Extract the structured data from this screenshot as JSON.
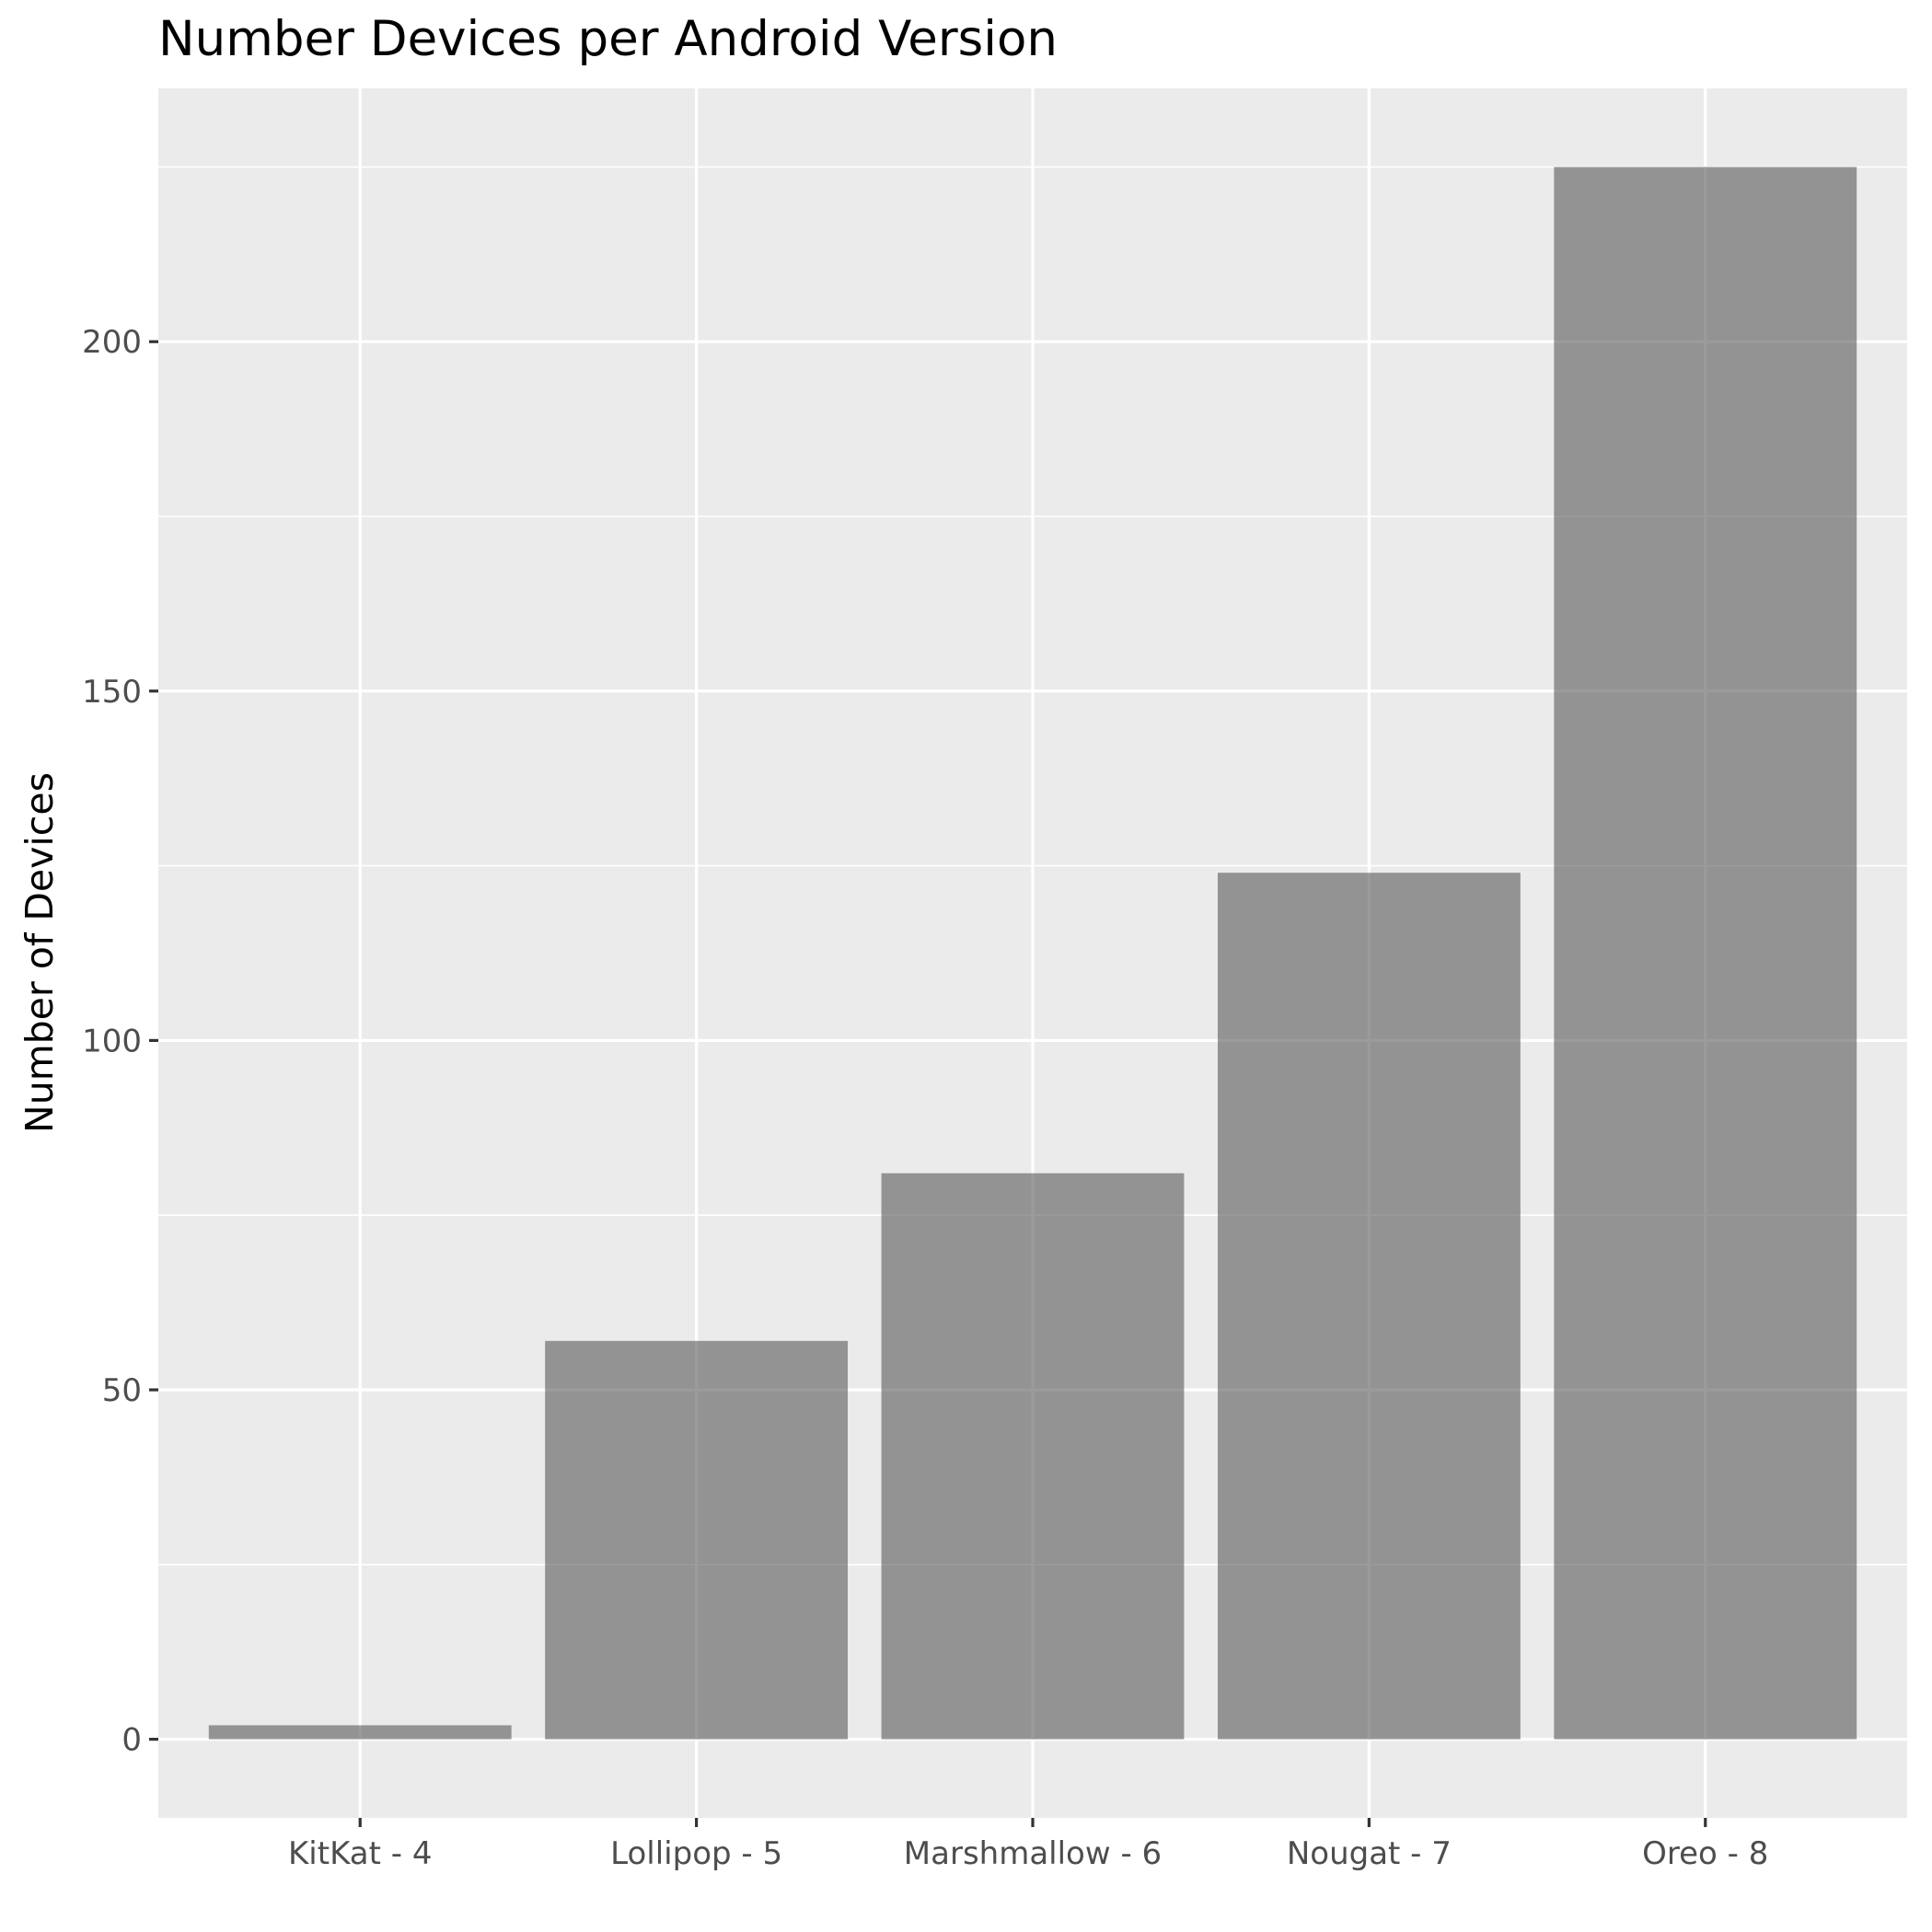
{
  "chart_data": {
    "type": "bar",
    "title": "Number Devices per Android Version",
    "xlabel": "",
    "ylabel": "Number of Devices",
    "categories": [
      "KitKat - 4",
      "Lollipop - 5",
      "Marshmallow - 6",
      "Nougat - 7",
      "Oreo - 8"
    ],
    "values": [
      2,
      57,
      81,
      124,
      225
    ],
    "ylim": [
      -11.25,
      236.25
    ],
    "yticks": [
      0,
      50,
      100,
      150,
      200
    ],
    "ytick_labels": [
      "0",
      "50",
      "100",
      "150",
      "200"
    ],
    "grid": true,
    "legend": "none",
    "colors": {
      "bar": "#595959",
      "bar_opacity": 0.6,
      "panel_background": "#ebebeb",
      "grid_line": "#ffffff",
      "tick_mark": "#333333",
      "tick_text": "#4d4d4d"
    }
  }
}
